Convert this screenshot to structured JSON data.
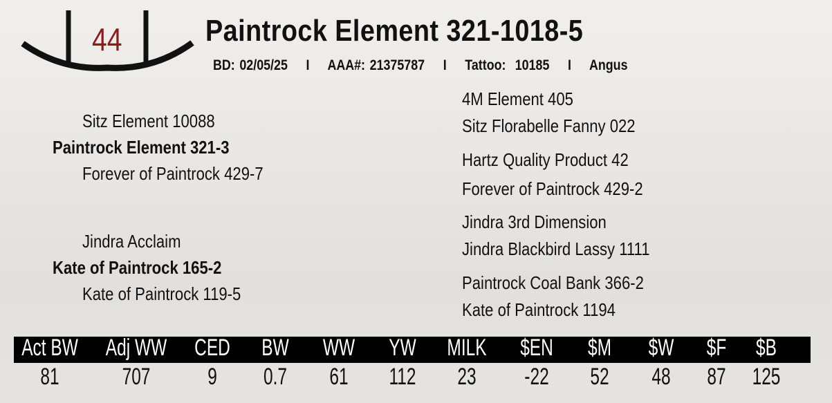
{
  "lot_number": "44",
  "title": "Paintrock Element 321-1018-5",
  "info": "BD: 02/05/25    I    AAA#: 21375787    I    Tattoo:  10185    I    Angus",
  "pedigree": {
    "sire": "Paintrock Element 321-3",
    "sire_sire": "Sitz Element 10088",
    "sire_dam": "Forever of Paintrock 429-7",
    "sss": "4M Element 405",
    "ssd": "Sitz Florabelle Fanny 022",
    "sds": "Hartz Quality Product 42",
    "sdd": "Forever of Paintrock 429-2",
    "dam": "Kate of Paintrock 165-2",
    "dam_sire": "Jindra Acclaim",
    "dam_dam": "Kate of Paintrock 119-5",
    "dss": "Jindra 3rd Dimension",
    "dsd": "Jindra Blackbird Lassy 1111",
    "dds": "Paintrock Coal Bank 366-2",
    "ddd": "Kate of Paintrock 1194"
  },
  "epds": {
    "headers": [
      "Act BW",
      "Adj WW",
      "CED",
      "BW",
      "WW",
      "YW",
      "MILK",
      "$EN",
      "$M",
      "$W",
      "$F",
      "$B"
    ],
    "values": [
      "81",
      "707",
      "9",
      "0.7",
      "61",
      "112",
      "23",
      "-22",
      "52",
      "48",
      "87",
      "125"
    ]
  }
}
